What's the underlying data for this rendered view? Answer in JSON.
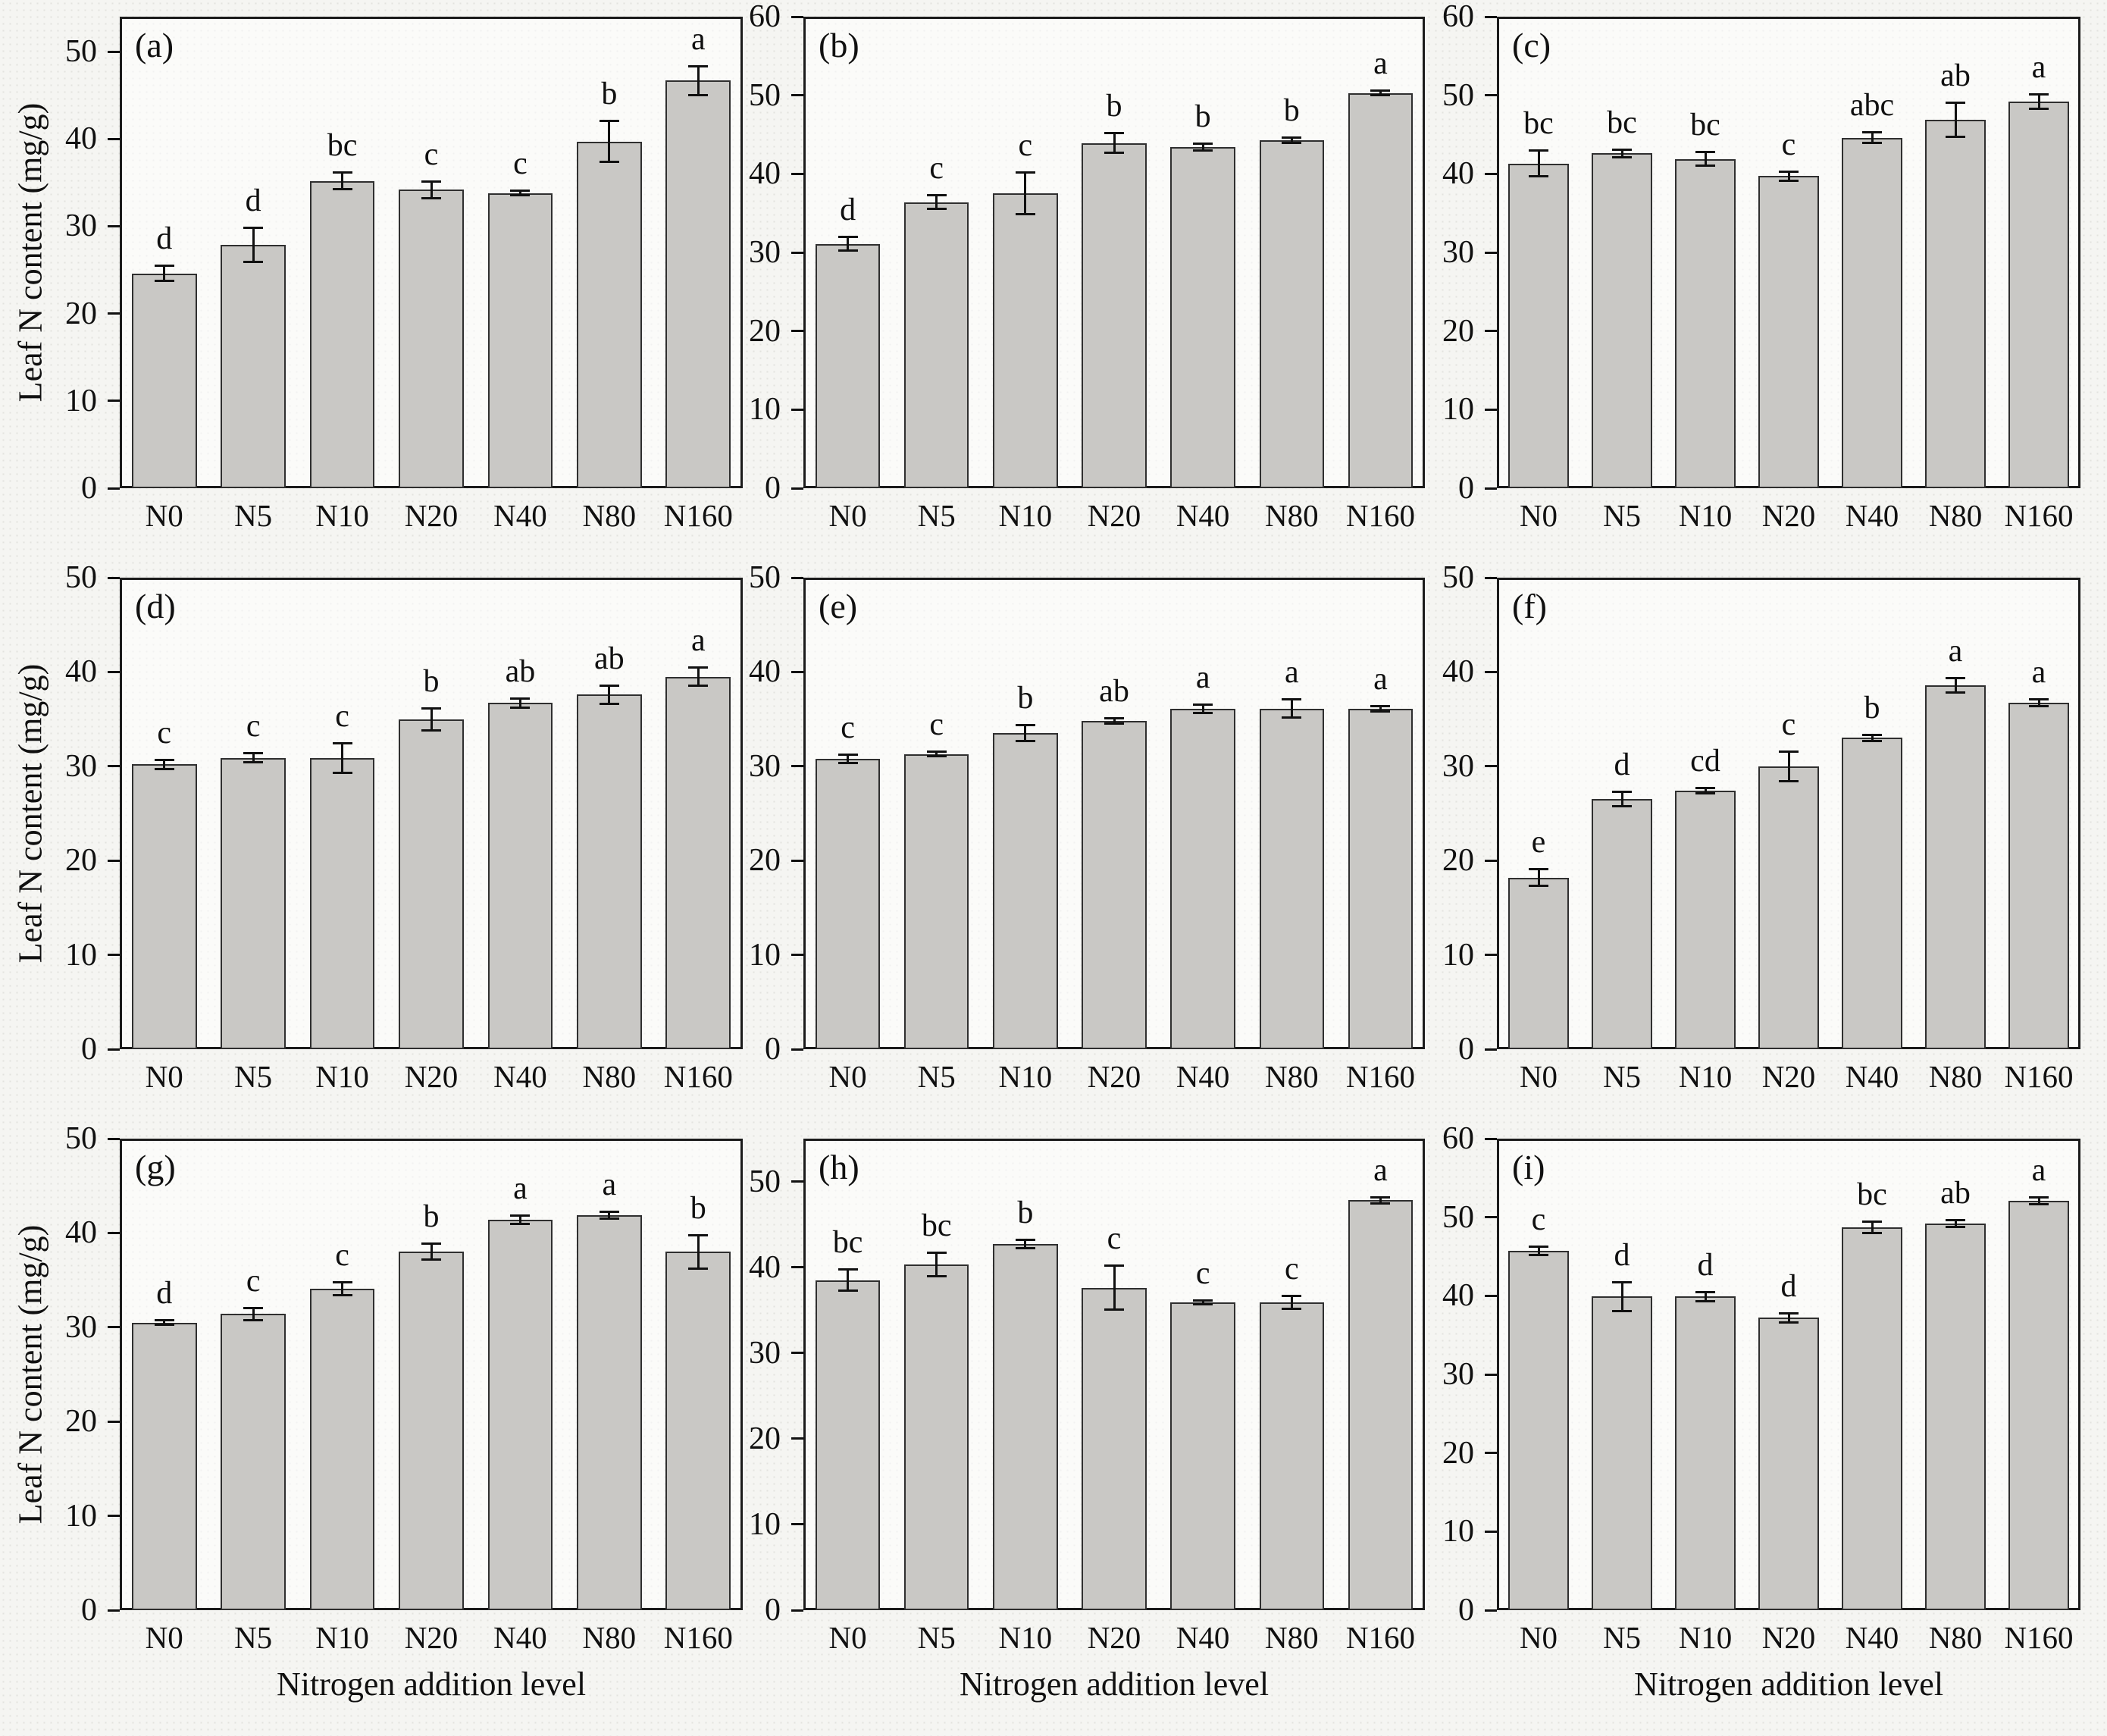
{
  "figure": {
    "y_axis_label": "Leaf N content  (mg/g)",
    "x_axis_label": "Nitrogen addition level",
    "categories": [
      "N0",
      "N5",
      "N10",
      "N20",
      "N40",
      "N80",
      "N160"
    ],
    "colors": {
      "bar_fill": "#c9c8c5",
      "bar_edge": "#2f2f2f",
      "frame": "#1b1b1b",
      "error_bar": "#111111",
      "text": "#101010",
      "background": "#f5f5f2"
    }
  },
  "chart_data": [
    {
      "type": "bar",
      "panel_label": "(a)",
      "categories": [
        "N0",
        "N5",
        "N10",
        "N20",
        "N40",
        "N80",
        "N160"
      ],
      "values": [
        24.6,
        27.9,
        35.2,
        34.2,
        33.8,
        39.7,
        46.7
      ],
      "errors": [
        0.9,
        2.0,
        1.0,
        1.0,
        0.3,
        2.4,
        1.7
      ],
      "sig_letters": [
        "d",
        "d",
        "bc",
        "c",
        "c",
        "b",
        "a"
      ],
      "yticks": [
        0,
        10,
        20,
        30,
        40,
        50
      ],
      "ylim": [
        0,
        54
      ],
      "ylabel": "Leaf N content  (mg/g)",
      "grid": false
    },
    {
      "type": "bar",
      "panel_label": "(b)",
      "categories": [
        "N0",
        "N5",
        "N10",
        "N20",
        "N40",
        "N80",
        "N160"
      ],
      "values": [
        31.1,
        36.4,
        37.5,
        43.9,
        43.4,
        44.3,
        50.3
      ],
      "errors": [
        0.9,
        0.9,
        2.7,
        1.3,
        0.5,
        0.4,
        0.3
      ],
      "sig_letters": [
        "d",
        "c",
        "c",
        "b",
        "b",
        "b",
        "a"
      ],
      "yticks": [
        0,
        10,
        20,
        30,
        40,
        50,
        60
      ],
      "ylim": [
        0,
        60
      ],
      "grid": false
    },
    {
      "type": "bar",
      "panel_label": "(c)",
      "categories": [
        "N0",
        "N5",
        "N10",
        "N20",
        "N40",
        "N80",
        "N160"
      ],
      "values": [
        41.3,
        42.6,
        41.9,
        39.7,
        44.6,
        46.9,
        49.2
      ],
      "errors": [
        1.7,
        0.5,
        0.9,
        0.6,
        0.7,
        2.2,
        1.0
      ],
      "sig_letters": [
        "bc",
        "bc",
        "bc",
        "c",
        "abc",
        "ab",
        "a"
      ],
      "yticks": [
        0,
        10,
        20,
        30,
        40,
        50,
        60
      ],
      "ylim": [
        0,
        60
      ],
      "grid": false
    },
    {
      "type": "bar",
      "panel_label": "(d)",
      "categories": [
        "N0",
        "N5",
        "N10",
        "N20",
        "N40",
        "N80",
        "N160"
      ],
      "values": [
        30.2,
        30.9,
        30.9,
        35.0,
        36.7,
        37.6,
        39.5
      ],
      "errors": [
        0.5,
        0.5,
        1.6,
        1.2,
        0.5,
        1.0,
        1.0
      ],
      "sig_letters": [
        "c",
        "c",
        "c",
        "b",
        "ab",
        "ab",
        "a"
      ],
      "yticks": [
        0,
        10,
        20,
        30,
        40,
        50
      ],
      "ylim": [
        0,
        50
      ],
      "ylabel": "Leaf N content  (mg/g)",
      "grid": false
    },
    {
      "type": "bar",
      "panel_label": "(e)",
      "categories": [
        "N0",
        "N5",
        "N10",
        "N20",
        "N40",
        "N80",
        "N160"
      ],
      "values": [
        30.8,
        31.3,
        33.5,
        34.8,
        36.1,
        36.1,
        36.1
      ],
      "errors": [
        0.5,
        0.3,
        0.9,
        0.3,
        0.5,
        1.0,
        0.3
      ],
      "sig_letters": [
        "c",
        "c",
        "b",
        "ab",
        "a",
        "a",
        "a"
      ],
      "yticks": [
        0,
        10,
        20,
        30,
        40,
        50
      ],
      "ylim": [
        0,
        50
      ],
      "grid": false
    },
    {
      "type": "bar",
      "panel_label": "(f)",
      "categories": [
        "N0",
        "N5",
        "N10",
        "N20",
        "N40",
        "N80",
        "N160"
      ],
      "values": [
        18.2,
        26.5,
        27.4,
        30.0,
        33.0,
        38.6,
        36.7
      ],
      "errors": [
        0.9,
        0.8,
        0.3,
        1.6,
        0.4,
        0.8,
        0.4
      ],
      "sig_letters": [
        "e",
        "d",
        "cd",
        "c",
        "b",
        "a",
        "a"
      ],
      "yticks": [
        0,
        10,
        20,
        30,
        40,
        50
      ],
      "ylim": [
        0,
        50
      ],
      "grid": false
    },
    {
      "type": "bar",
      "panel_label": "(g)",
      "categories": [
        "N0",
        "N5",
        "N10",
        "N20",
        "N40",
        "N80",
        "N160"
      ],
      "values": [
        30.5,
        31.4,
        34.1,
        38.0,
        41.4,
        41.9,
        38.0
      ],
      "errors": [
        0.3,
        0.7,
        0.7,
        0.9,
        0.5,
        0.4,
        1.8
      ],
      "sig_letters": [
        "d",
        "c",
        "c",
        "b",
        "a",
        "a",
        "b"
      ],
      "yticks": [
        0,
        10,
        20,
        30,
        40,
        50
      ],
      "ylim": [
        0,
        50
      ],
      "ylabel": "Leaf N content  (mg/g)",
      "xlabel": "Nitrogen addition level",
      "grid": false
    },
    {
      "type": "bar",
      "panel_label": "(h)",
      "categories": [
        "N0",
        "N5",
        "N10",
        "N20",
        "N40",
        "N80",
        "N160"
      ],
      "values": [
        38.5,
        40.3,
        42.7,
        37.6,
        35.9,
        35.9,
        47.8
      ],
      "errors": [
        1.3,
        1.4,
        0.5,
        2.6,
        0.3,
        0.8,
        0.4
      ],
      "sig_letters": [
        "bc",
        "bc",
        "b",
        "c",
        "c",
        "c",
        "a"
      ],
      "yticks": [
        0,
        10,
        20,
        30,
        40,
        50
      ],
      "ylim": [
        0,
        55
      ],
      "xlabel": "Nitrogen addition level",
      "grid": false
    },
    {
      "type": "bar",
      "panel_label": "(i)",
      "categories": [
        "N0",
        "N5",
        "N10",
        "N20",
        "N40",
        "N80",
        "N160"
      ],
      "values": [
        45.7,
        39.9,
        39.9,
        37.2,
        48.7,
        49.2,
        52.1
      ],
      "errors": [
        0.6,
        1.9,
        0.6,
        0.6,
        0.8,
        0.5,
        0.5
      ],
      "sig_letters": [
        "c",
        "d",
        "d",
        "d",
        "bc",
        "ab",
        "a"
      ],
      "yticks": [
        0,
        10,
        20,
        30,
        40,
        50,
        60
      ],
      "ylim": [
        0,
        60
      ],
      "xlabel": "Nitrogen addition level",
      "grid": false
    }
  ]
}
